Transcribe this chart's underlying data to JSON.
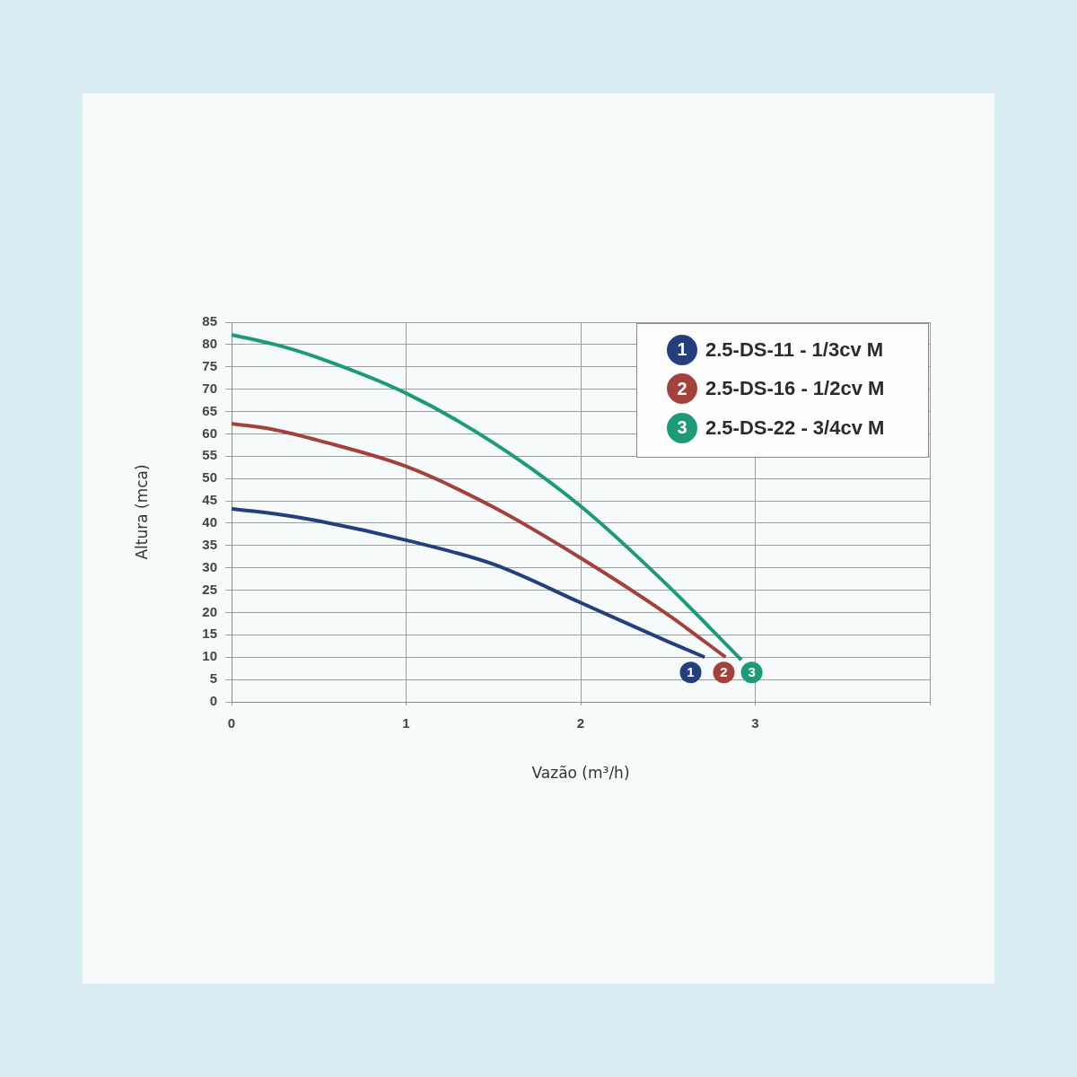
{
  "chart_data": {
    "type": "line",
    "xlabel": "Vazão (m³/h)",
    "ylabel": "Altura (mca)",
    "xlim": [
      0,
      4
    ],
    "xticks": [
      0,
      1,
      2,
      3,
      {
        "value": 4,
        "label": null
      }
    ],
    "ylim": [
      0,
      85
    ],
    "yticks": [
      0,
      5,
      10,
      15,
      20,
      25,
      30,
      35,
      40,
      45,
      50,
      55,
      60,
      65,
      70,
      75,
      80,
      85
    ],
    "series": [
      {
        "name": "2.5-DS-11 - 1/3cv M",
        "color": "#243f7c",
        "x": [
          0,
          0.25,
          0.5,
          1,
          1.5,
          2,
          2.5,
          2.71
        ],
        "values": [
          43.2,
          42.1,
          40.5,
          36.2,
          30.8,
          22.2,
          13.5,
          10
        ]
      },
      {
        "name": "2.5-DS-16 - 1/2cv M",
        "color": "#a3423c",
        "x": [
          0,
          0.25,
          0.5,
          1,
          1.5,
          2,
          2.5,
          2.83
        ],
        "values": [
          62.3,
          60.9,
          58.5,
          52.7,
          43.6,
          32.2,
          19.5,
          10
        ]
      },
      {
        "name": "2.5-DS-22 - 3/4cv M",
        "color": "#1f9a77",
        "x": [
          0,
          0.25,
          0.5,
          1,
          1.5,
          2,
          2.5,
          2.92
        ],
        "values": [
          82.2,
          80,
          77,
          69.1,
          58,
          43.8,
          26,
          9.4
        ]
      }
    ],
    "annotations": [
      {
        "text": "1",
        "x": 2.63,
        "y": 6.6
      },
      {
        "text": "2",
        "x": 2.82,
        "y": 6.6
      },
      {
        "text": "3",
        "x": 2.98,
        "y": 6.6
      }
    ],
    "grid": true,
    "legend": "top right",
    "marker": "none",
    "line_style": "solid"
  }
}
